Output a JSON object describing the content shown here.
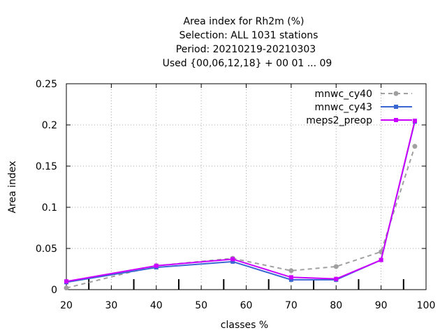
{
  "chart_data": {
    "type": "line",
    "title_lines": [
      "Area index  for Rh2m (%)",
      "Selection: ALL    1031 stations",
      "Period: 20210219-20210303",
      "Used {00,06,12,18} + 00 01 ... 09"
    ],
    "xlabel": "classes %",
    "ylabel": "Area index",
    "xlim": [
      20,
      100
    ],
    "ylim": [
      0,
      0.25
    ],
    "x_ticks": [
      20,
      30,
      40,
      50,
      60,
      70,
      80,
      90,
      100
    ],
    "x_tick_labels": [
      "20",
      "30",
      "40",
      "50",
      "60",
      "70",
      "80",
      "90",
      "100"
    ],
    "y_ticks": [
      0,
      0.05,
      0.1,
      0.15,
      0.2,
      0.25
    ],
    "y_tick_labels": [
      "0",
      "0.05",
      "0.1",
      "0.15",
      "0.2",
      "0.25"
    ],
    "grid": true,
    "legend_position": "top-right",
    "class_edge_marks": [
      25,
      35,
      45,
      55,
      65,
      75,
      85,
      95
    ],
    "series": [
      {
        "name": "mnwc_cy40",
        "color": "#a0a0a0",
        "dashed": true,
        "x": [
          20,
          40,
          57,
          70,
          80,
          90,
          97.5
        ],
        "y": [
          0.002,
          0.029,
          0.038,
          0.023,
          0.028,
          0.046,
          0.174
        ]
      },
      {
        "name": "mnwc_cy43",
        "color": "#3a66d4",
        "dashed": false,
        "x": [
          20,
          40,
          57,
          70,
          80,
          90,
          97.5
        ],
        "y": [
          0.009,
          0.027,
          0.034,
          0.012,
          0.012,
          0.036,
          0.204
        ]
      },
      {
        "name": "meps2_preop",
        "color": "#cc00ff",
        "dashed": false,
        "x": [
          20,
          40,
          57,
          70,
          80,
          90,
          97.5
        ],
        "y": [
          0.01,
          0.029,
          0.037,
          0.015,
          0.013,
          0.036,
          0.205
        ]
      }
    ]
  }
}
